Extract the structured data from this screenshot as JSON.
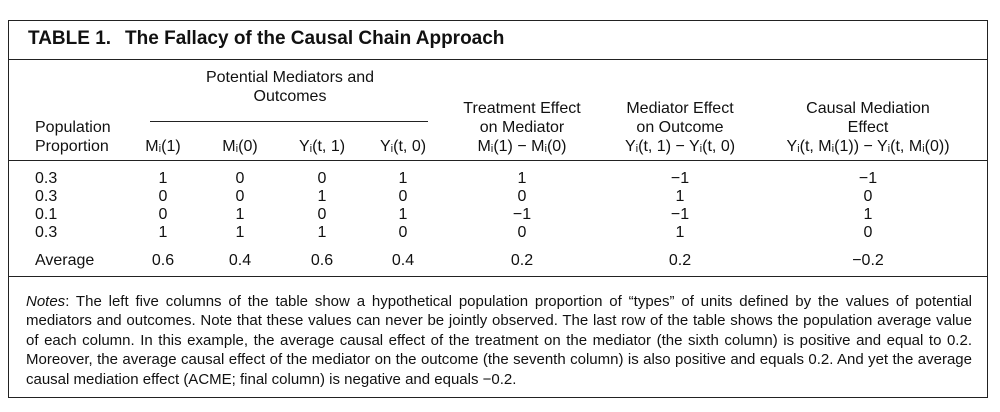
{
  "title": {
    "label": "TABLE 1.",
    "text": "The Fallacy of the Causal Chain Approach"
  },
  "table": {
    "group_header": [
      "Potential Mediators and",
      "Outcomes"
    ],
    "columns": [
      [
        "Population",
        "Proportion"
      ],
      [
        "Mᵢ(1)"
      ],
      [
        "Mᵢ(0)"
      ],
      [
        "Yᵢ(t, 1)"
      ],
      [
        "Yᵢ(t, 0)"
      ],
      [
        "Treatment Effect",
        "on Mediator",
        "Mᵢ(1) − Mᵢ(0)"
      ],
      [
        "Mediator Effect",
        "on Outcome",
        "Yᵢ(t, 1) − Yᵢ(t, 0)"
      ],
      [
        "Causal Mediation",
        "Effect",
        "Yᵢ(t, Mᵢ(1)) − Yᵢ(t, Mᵢ(0))"
      ]
    ],
    "rows": [
      [
        "0.3",
        "1",
        "0",
        "0",
        "1",
        "1",
        "−1",
        "−1"
      ],
      [
        "0.3",
        "0",
        "0",
        "1",
        "0",
        "0",
        "1",
        "0"
      ],
      [
        "0.1",
        "0",
        "1",
        "0",
        "1",
        "−1",
        "−1",
        "1"
      ],
      [
        "0.3",
        "1",
        "1",
        "1",
        "0",
        "0",
        "1",
        "0"
      ],
      [
        "Average",
        "0.6",
        "0.4",
        "0.6",
        "0.4",
        "0.2",
        "0.2",
        "−0.2"
      ]
    ]
  },
  "notes": {
    "label": "Notes",
    "text": ": The left five columns of the table show a hypothetical population proportion of “types” of units defined by the values of potential mediators and outcomes. Note that these values can never be jointly observed. The last row of the table shows the population average value of each column. In this example, the average causal effect of the treatment on the mediator (the sixth column) is positive and equal to 0.2. Moreover, the average causal effect of the mediator on the outcome (the seventh column) is also positive and equals 0.2. And yet the average causal mediation effect (ACME; final column) is negative and equals −0.2."
  }
}
